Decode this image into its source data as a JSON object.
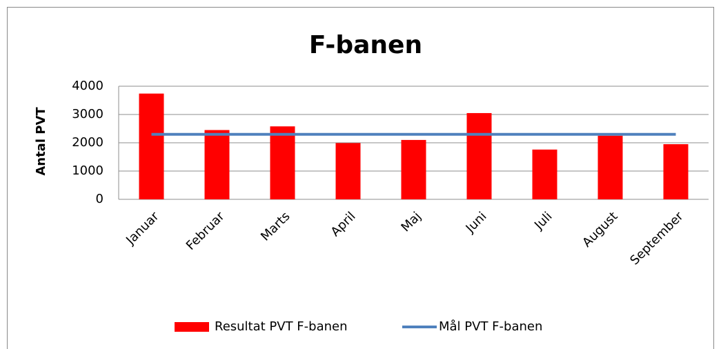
{
  "chart_data": {
    "type": "bar",
    "title": "F-banen",
    "y_label": "Antal PVT",
    "categories": [
      "Januar",
      "Februar",
      "Marts",
      "April",
      "Maj",
      "Juni",
      "Juli",
      "August",
      "September"
    ],
    "series": [
      {
        "name": "Resultat PVT F-banen",
        "type": "bar",
        "color": "#ff0000",
        "values": [
          3740,
          2450,
          2580,
          1990,
          2100,
          3050,
          1760,
          2250,
          1950
        ]
      },
      {
        "name": "Mål PVT F-banen",
        "type": "line",
        "color": "#4f81bd",
        "values": [
          2300,
          2300,
          2300,
          2300,
          2300,
          2300,
          2300,
          2300,
          2300
        ]
      }
    ],
    "ylim": [
      0,
      4000
    ],
    "yticks": [
      0,
      1000,
      2000,
      3000,
      4000
    ],
    "grid": true,
    "legend": "bottom"
  }
}
